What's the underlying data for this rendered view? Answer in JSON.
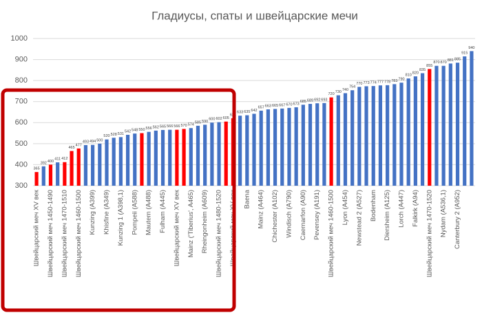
{
  "chart_data": {
    "type": "bar",
    "title": "Гладиусы, спаты и швейцарские мечи",
    "categories": [
      "Швейцарский меч XV век",
      null,
      "Швейцарский меч 1450-1490",
      null,
      "Швейцарский меч 1470-1510",
      null,
      "Швейцарский меч 1460-1500",
      null,
      "Kunzing (A399)",
      null,
      "Khisfine (A349)",
      null,
      "Kunzing 1 (A398,1)",
      null,
      "Pompeii (A588)",
      null,
      "Mautern (A488)",
      null,
      "Fulham (A445)",
      null,
      "Швейцарский меч XV век",
      null,
      "Mainz ('Tiberius', A465)",
      null,
      "Rheingonheim (A609)",
      null,
      "Швейцарский меч 1480-1520",
      null,
      "Швейцарский меч XV век",
      null,
      "Baena",
      null,
      "Mainz (A464)",
      null,
      "Chichester (A102)",
      null,
      "Windisch (A790)",
      null,
      "Caernarfon (A90)",
      null,
      "Pevensey (A191)",
      null,
      "Швейцарский меч 1460-1500",
      null,
      "Lyon (A454)",
      null,
      "Newstead 2 (A527)",
      null,
      "Bodenham",
      null,
      "Diersheim (A125)",
      null,
      "Lorch (A447)",
      null,
      "Falkirk (A94)",
      null,
      "Швейцарский меч 1470-1520",
      null,
      "Nydam (A536,1)",
      null,
      "Canterbury 2 (A952)",
      null,
      null
    ],
    "values": [
      365,
      392,
      400,
      411,
      412,
      465,
      477,
      493,
      494,
      500,
      520,
      528,
      531,
      542,
      548,
      550,
      556,
      562,
      565,
      566,
      566,
      570,
      574,
      585,
      590,
      600,
      602,
      605,
      621,
      633,
      635,
      642,
      657,
      663,
      665,
      667,
      670,
      673,
      685,
      689,
      692,
      693,
      720,
      730,
      740,
      754,
      770,
      773,
      774,
      777,
      778,
      783,
      790,
      810,
      820,
      835,
      855,
      870,
      870,
      881,
      885,
      915,
      940
    ],
    "colors": [
      "#ff0000",
      "#4472c4",
      "#ff0000",
      "#4472c4",
      "#ff0000",
      "#ff0000",
      "#ff0000",
      "#4472c4",
      "#4472c4",
      "#4472c4",
      "#4472c4",
      "#4472c4",
      "#4472c4",
      "#4472c4",
      "#4472c4",
      "#ff0000",
      "#4472c4",
      "#4472c4",
      "#4472c4",
      "#4472c4",
      "#ff0000",
      "#ff0000",
      "#4472c4",
      "#4472c4",
      "#4472c4",
      "#4472c4",
      "#4472c4",
      "#ff0000",
      "#ff0000",
      "#4472c4",
      "#4472c4",
      "#4472c4",
      "#4472c4",
      "#4472c4",
      "#4472c4",
      "#4472c4",
      "#4472c4",
      "#4472c4",
      "#4472c4",
      "#4472c4",
      "#4472c4",
      "#4472c4",
      "#ff0000",
      "#4472c4",
      "#4472c4",
      "#4472c4",
      "#4472c4",
      "#4472c4",
      "#4472c4",
      "#4472c4",
      "#4472c4",
      "#4472c4",
      "#4472c4",
      "#4472c4",
      "#4472c4",
      "#4472c4",
      "#ff0000",
      "#4472c4",
      "#4472c4",
      "#4472c4",
      "#4472c4",
      "#4472c4",
      "#4472c4"
    ],
    "ylim": [
      300,
      1000
    ],
    "yticks": [
      300,
      400,
      500,
      600,
      700,
      800,
      900,
      1000
    ],
    "grid": true
  }
}
